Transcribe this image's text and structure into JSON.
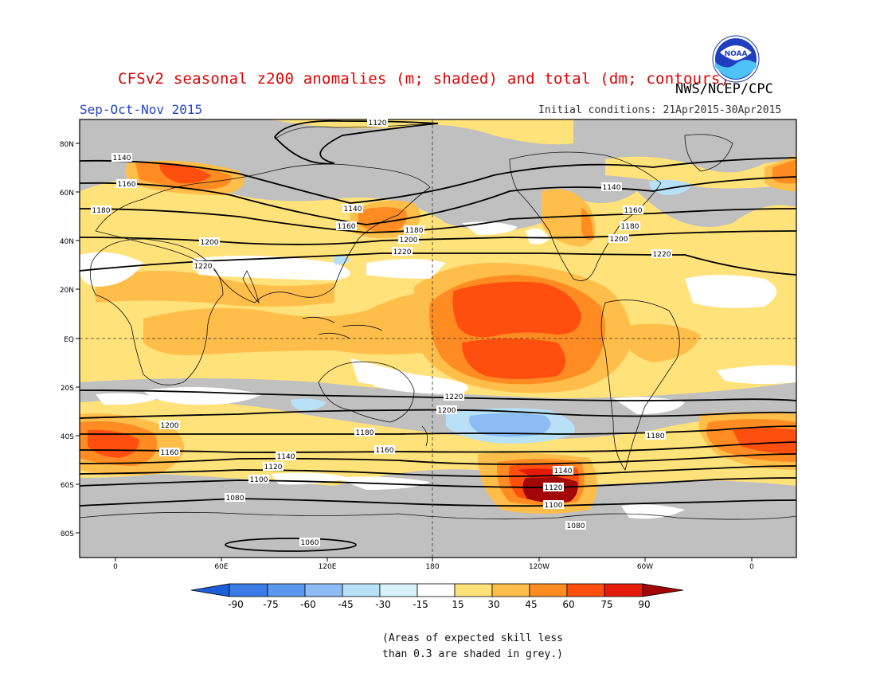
{
  "title": "CFSv2 seasonal z200 anomalies (m; shaded) and total (dm; contours)",
  "agency": "NWS/NCEP/CPC",
  "logo_text": "NOAA",
  "season": "Sep-Oct-Nov 2015",
  "initial_conditions": "Initial conditions: 21Apr2015-30Apr2015",
  "lat_labels": [
    "80N",
    "60N",
    "40N",
    "20N",
    "EQ",
    "20S",
    "40S",
    "60S",
    "80S"
  ],
  "lon_labels": [
    "0",
    "60E",
    "120E",
    "180",
    "120W",
    "60W",
    "0"
  ],
  "contour_labels": [
    "1120",
    "1140",
    "1160",
    "1180",
    "1200",
    "1220",
    "1200",
    "1180",
    "1160",
    "1140",
    "1120",
    "1100",
    "1080",
    "1060",
    "1140",
    "1160",
    "1180",
    "1200",
    "1220",
    "1220",
    "1200",
    "1180",
    "1160",
    "1140",
    "1120",
    "1100",
    "1080",
    "1140",
    "1160",
    "1180",
    "1200",
    "1220"
  ],
  "colorbar": {
    "ticks": [
      "-90",
      "-75",
      "-60",
      "-45",
      "-30",
      "-15",
      "15",
      "30",
      "45",
      "60",
      "75",
      "90"
    ],
    "colors": [
      "#1c5fd8",
      "#3b7be6",
      "#5c98ee",
      "#8cbcf3",
      "#b8e1f7",
      "#ffffff",
      "#ffe27a",
      "#ffbd4a",
      "#ff8c23",
      "#ff4f0e",
      "#e41b0a",
      "#a30606"
    ]
  },
  "note": [
    "(Areas of expected skill less",
    "than 0.3 are shaded in grey.)"
  ],
  "colors": {
    "grey": "#c0c0c0",
    "title_red": "#e00000",
    "season_blue": "#2244cc"
  }
}
